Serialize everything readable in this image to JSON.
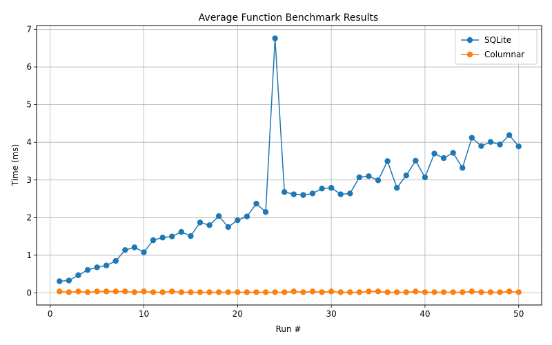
{
  "chart_data": {
    "type": "line",
    "title": "Average Function Benchmark Results",
    "xlabel": "Run #",
    "ylabel": "Time (ms)",
    "xlim": [
      -1.45,
      52.45
    ],
    "ylim": [
      -0.32,
      7.1
    ],
    "xticks": [
      0,
      10,
      20,
      30,
      40,
      50
    ],
    "yticks": [
      0,
      1,
      2,
      3,
      4,
      5,
      6,
      7
    ],
    "grid": true,
    "legend_position": "top-right",
    "x": [
      1,
      2,
      3,
      4,
      5,
      6,
      7,
      8,
      9,
      10,
      11,
      12,
      13,
      14,
      15,
      16,
      17,
      18,
      19,
      20,
      21,
      22,
      23,
      24,
      25,
      26,
      27,
      28,
      29,
      30,
      31,
      32,
      33,
      34,
      35,
      36,
      37,
      38,
      39,
      40,
      41,
      42,
      43,
      44,
      45,
      46,
      47,
      48,
      49,
      50
    ],
    "series": [
      {
        "name": "SQLite",
        "color": "#1f77b4",
        "values": [
          0.31,
          0.33,
          0.47,
          0.61,
          0.68,
          0.73,
          0.85,
          1.14,
          1.21,
          1.08,
          1.4,
          1.47,
          1.5,
          1.62,
          1.51,
          1.87,
          1.8,
          2.04,
          1.75,
          1.93,
          2.03,
          2.37,
          2.15,
          6.76,
          2.68,
          2.62,
          2.6,
          2.64,
          2.77,
          2.79,
          2.62,
          2.64,
          3.07,
          3.1,
          2.99,
          3.5,
          2.79,
          3.12,
          3.51,
          3.07,
          3.7,
          3.58,
          3.72,
          3.32,
          4.12,
          3.9,
          4.01,
          3.94,
          4.19,
          3.89
        ]
      },
      {
        "name": "Columnar",
        "color": "#ff7f0e",
        "values": [
          0.04,
          0.02,
          0.04,
          0.02,
          0.04,
          0.04,
          0.04,
          0.04,
          0.02,
          0.04,
          0.02,
          0.02,
          0.04,
          0.02,
          0.02,
          0.02,
          0.02,
          0.02,
          0.02,
          0.02,
          0.02,
          0.02,
          0.02,
          0.02,
          0.02,
          0.04,
          0.02,
          0.04,
          0.02,
          0.04,
          0.02,
          0.02,
          0.02,
          0.04,
          0.04,
          0.02,
          0.02,
          0.02,
          0.04,
          0.02,
          0.02,
          0.02,
          0.02,
          0.02,
          0.04,
          0.02,
          0.02,
          0.02,
          0.04,
          0.02
        ]
      }
    ]
  }
}
